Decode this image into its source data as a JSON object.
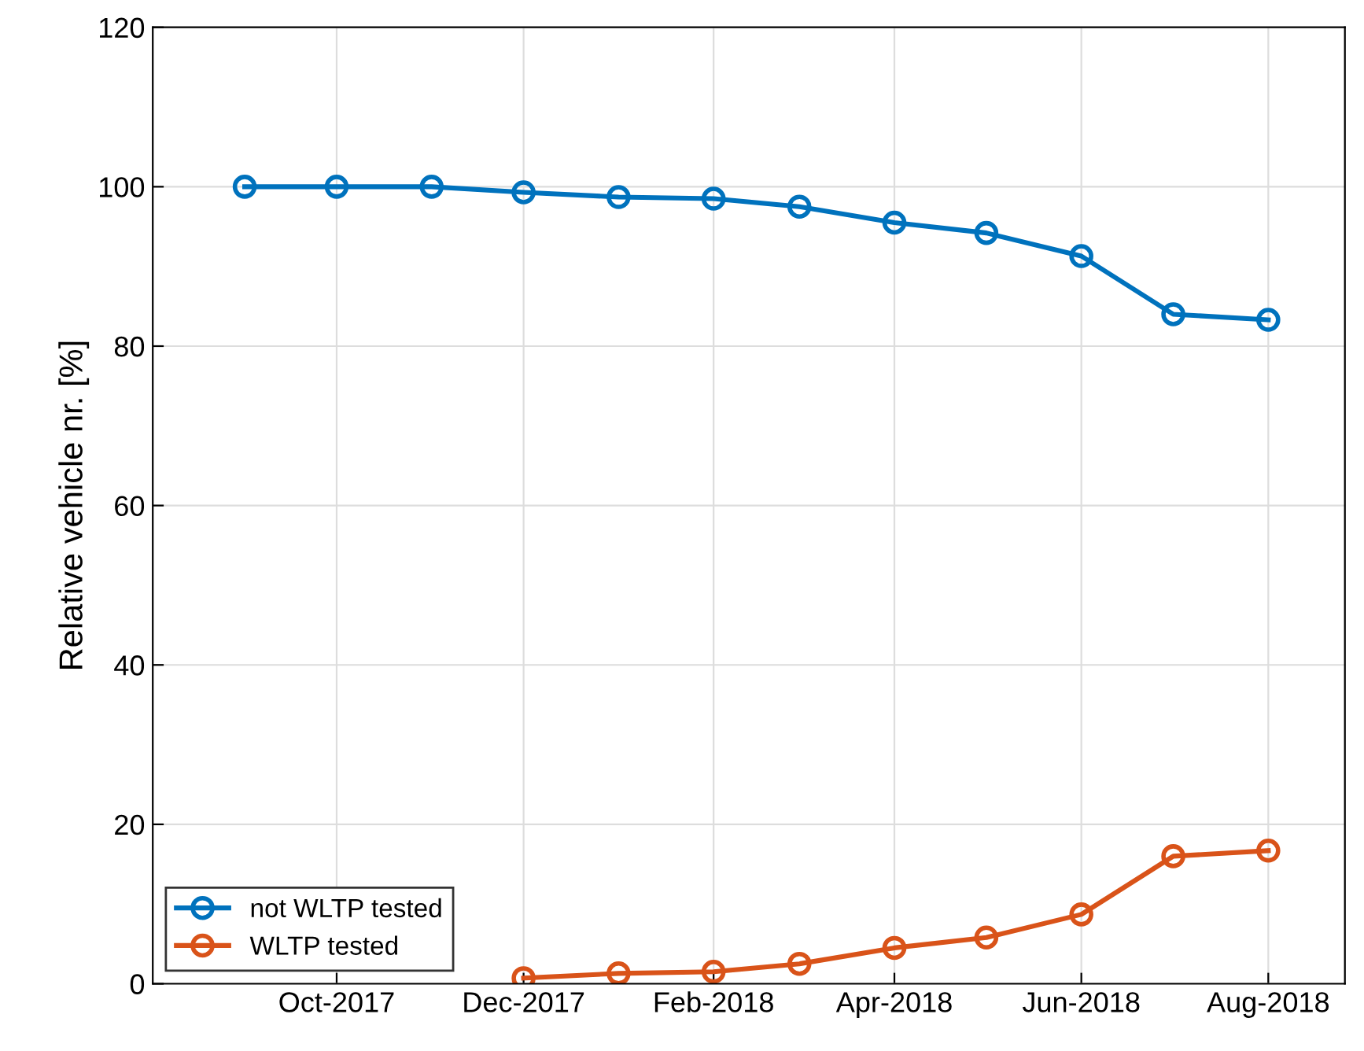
{
  "chart_data": {
    "type": "line",
    "ylabel": "Relative vehicle nr. [%]",
    "x": [
      "2017-09",
      "2017-10",
      "2017-11",
      "2017-12",
      "2018-01",
      "2018-02",
      "2018-03",
      "2018-04",
      "2018-05",
      "2018-06",
      "2018-07",
      "2018-08"
    ],
    "series": [
      {
        "name": "not WLTP tested",
        "color": "#0072bd",
        "values": [
          100,
          100,
          100,
          99.3,
          98.7,
          98.5,
          97.5,
          95.5,
          94.2,
          91.3,
          84,
          83.3
        ]
      },
      {
        "name": "WLTP tested",
        "color": "#d95319",
        "values": [
          null,
          null,
          null,
          0.7,
          1.3,
          1.5,
          2.5,
          4.5,
          5.8,
          8.7,
          16,
          16.7
        ]
      }
    ],
    "xlim": [
      "2017-08-02",
      "2018-08-26"
    ],
    "xticks": [
      {
        "value": "2017-10",
        "label": "Oct-2017"
      },
      {
        "value": "2017-12",
        "label": "Dec-2017"
      },
      {
        "value": "2018-02",
        "label": "Feb-2018"
      },
      {
        "value": "2018-04",
        "label": "Apr-2018"
      },
      {
        "value": "2018-06",
        "label": "Jun-2018"
      },
      {
        "value": "2018-08",
        "label": "Aug-2018"
      }
    ],
    "ylim": [
      0,
      120
    ],
    "yticks": [
      0,
      20,
      40,
      60,
      80,
      100,
      120
    ],
    "grid": true,
    "legend": "bottom left",
    "marker": "circle",
    "line_style": "solid"
  }
}
